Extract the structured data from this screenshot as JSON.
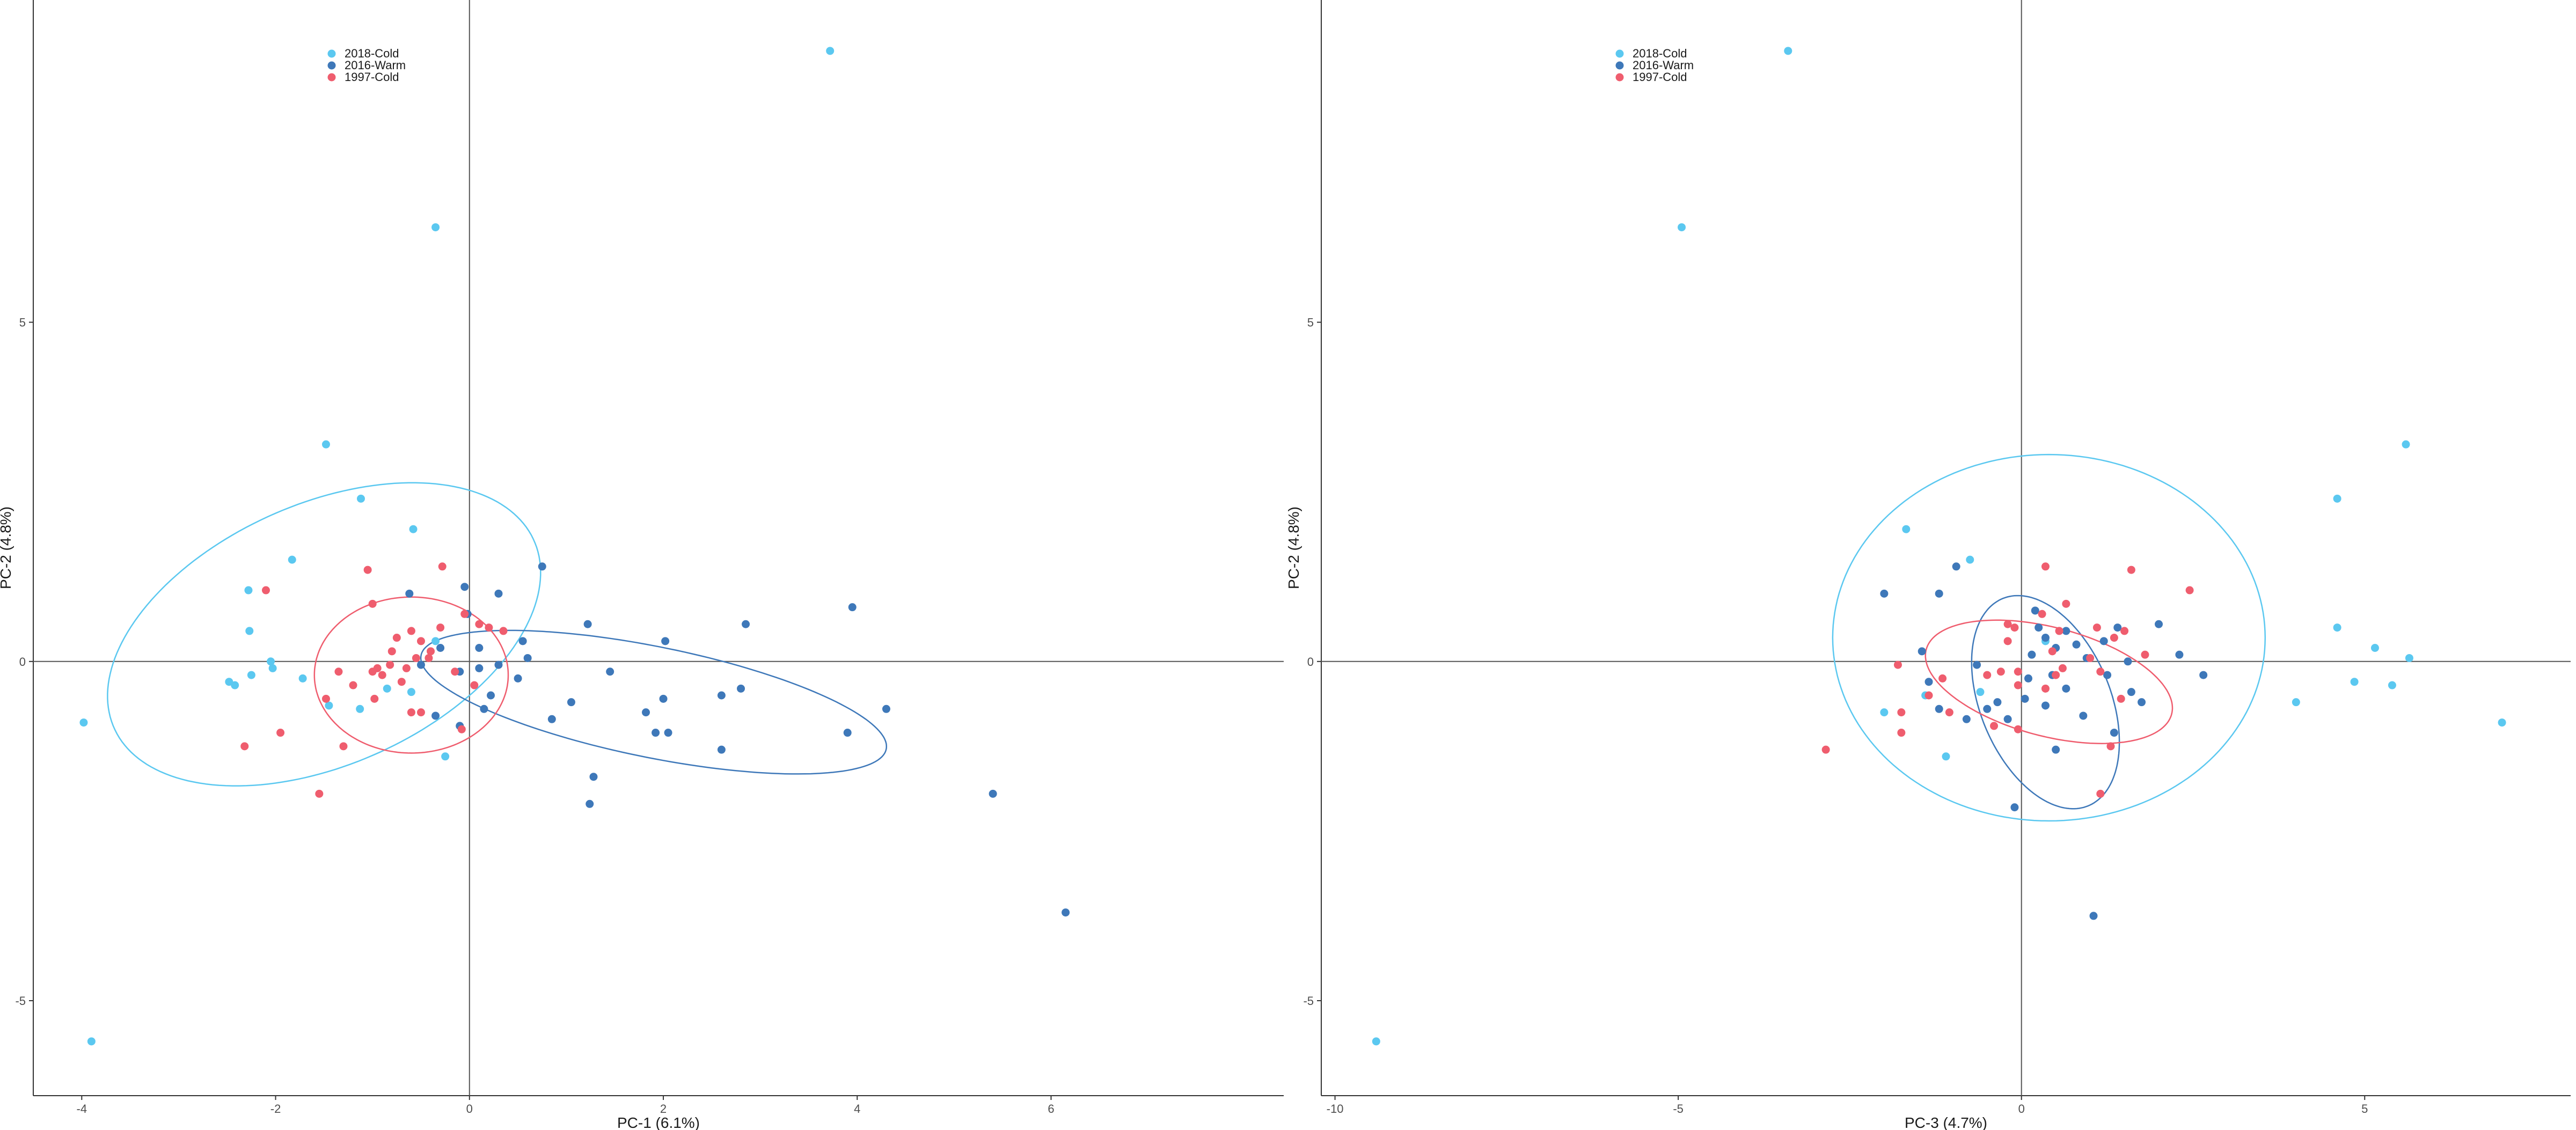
{
  "chart_data": [
    {
      "type": "scatter",
      "xlabel": "PC-1 (6.1%)",
      "ylabel": "PC-2 (4.8%)",
      "xlim": [
        -4.5,
        8.4
      ],
      "ylim": [
        -6.4,
        9.75
      ],
      "xticks": [
        -4,
        -2,
        0,
        2,
        4,
        6
      ],
      "yticks": [
        -5,
        0,
        5
      ],
      "grid": false,
      "legend": "top-left",
      "series": [
        {
          "name": "2018-Cold",
          "color": "#5bc8f0",
          "points": [
            [
              3.72,
              9.0
            ],
            [
              -0.35,
              6.4
            ],
            [
              -1.48,
              3.2
            ],
            [
              -1.12,
              2.4
            ],
            [
              -0.58,
              1.95
            ],
            [
              -1.83,
              1.5
            ],
            [
              -2.28,
              1.05
            ],
            [
              -2.27,
              0.45
            ],
            [
              -2.05,
              0.0
            ],
            [
              -2.03,
              -0.1
            ],
            [
              -2.25,
              -0.2
            ],
            [
              -1.72,
              -0.25
            ],
            [
              -2.48,
              -0.3
            ],
            [
              -2.42,
              -0.35
            ],
            [
              -0.85,
              -0.4
            ],
            [
              -1.45,
              -0.65
            ],
            [
              -1.13,
              -0.7
            ],
            [
              -0.25,
              -1.4
            ],
            [
              -3.98,
              -0.9
            ],
            [
              -3.9,
              -5.6
            ],
            [
              -0.35,
              0.3
            ],
            [
              -0.6,
              -0.45
            ]
          ]
        },
        {
          "name": "2016-Warm",
          "color": "#3e78b9",
          "points": [
            [
              0.75,
              1.4
            ],
            [
              -0.62,
              1.0
            ],
            [
              0.3,
              1.0
            ],
            [
              -0.05,
              1.1
            ],
            [
              -0.02,
              0.7
            ],
            [
              3.95,
              0.8
            ],
            [
              2.85,
              0.55
            ],
            [
              1.22,
              0.55
            ],
            [
              0.55,
              0.3
            ],
            [
              2.02,
              0.3
            ],
            [
              -0.3,
              0.2
            ],
            [
              0.1,
              0.2
            ],
            [
              0.6,
              0.05
            ],
            [
              0.3,
              -0.05
            ],
            [
              -0.5,
              -0.05
            ],
            [
              0.1,
              -0.1
            ],
            [
              -0.1,
              -0.15
            ],
            [
              1.45,
              -0.15
            ],
            [
              0.5,
              -0.25
            ],
            [
              2.8,
              -0.4
            ],
            [
              0.22,
              -0.5
            ],
            [
              2.0,
              -0.55
            ],
            [
              2.6,
              -0.5
            ],
            [
              1.05,
              -0.6
            ],
            [
              0.15,
              -0.7
            ],
            [
              4.3,
              -0.7
            ],
            [
              0.85,
              -0.85
            ],
            [
              1.82,
              -0.75
            ],
            [
              1.92,
              -1.05
            ],
            [
              2.05,
              -1.05
            ],
            [
              3.9,
              -1.05
            ],
            [
              -0.1,
              -0.95
            ],
            [
              -0.35,
              -0.8
            ],
            [
              2.6,
              -1.3
            ],
            [
              1.28,
              -1.7
            ],
            [
              1.24,
              -2.1
            ],
            [
              5.4,
              -1.95
            ],
            [
              6.15,
              -3.7
            ]
          ]
        },
        {
          "name": "1997-Cold",
          "color": "#ef5d6e",
          "points": [
            [
              -1.05,
              1.35
            ],
            [
              -0.28,
              1.4
            ],
            [
              -2.1,
              1.05
            ],
            [
              -1.0,
              0.85
            ],
            [
              -0.05,
              0.7
            ],
            [
              0.1,
              0.55
            ],
            [
              -0.3,
              0.5
            ],
            [
              -0.6,
              0.45
            ],
            [
              0.2,
              0.5
            ],
            [
              0.35,
              0.45
            ],
            [
              -0.75,
              0.35
            ],
            [
              -0.5,
              0.3
            ],
            [
              -0.8,
              0.15
            ],
            [
              -0.4,
              0.15
            ],
            [
              -0.55,
              0.05
            ],
            [
              -0.42,
              0.05
            ],
            [
              -0.82,
              -0.05
            ],
            [
              -0.95,
              -0.1
            ],
            [
              -0.65,
              -0.1
            ],
            [
              -1.0,
              -0.15
            ],
            [
              -1.35,
              -0.15
            ],
            [
              -0.9,
              -0.2
            ],
            [
              -0.15,
              -0.15
            ],
            [
              -0.7,
              -0.3
            ],
            [
              -1.2,
              -0.35
            ],
            [
              -0.98,
              -0.55
            ],
            [
              -0.6,
              -0.75
            ],
            [
              -0.5,
              -0.75
            ],
            [
              -0.08,
              -1.0
            ],
            [
              -1.95,
              -1.05
            ],
            [
              -2.32,
              -1.25
            ],
            [
              -1.3,
              -1.25
            ],
            [
              -1.55,
              -1.95
            ],
            [
              0.05,
              -0.35
            ],
            [
              -1.48,
              -0.55
            ]
          ]
        }
      ],
      "ellipses": [
        {
          "series": "2018-Cold",
          "cx": -1.5,
          "cy": 0.4,
          "rx": 2.65,
          "ry": 1.72,
          "angle": 45
        },
        {
          "series": "2016-Warm",
          "cx": 1.9,
          "cy": -0.6,
          "rx": 2.5,
          "ry": 0.8,
          "angle": -17
        },
        {
          "series": "1997-Cold",
          "cx": -0.6,
          "cy": -0.2,
          "rx": 1.0,
          "ry": 1.15,
          "angle": 0
        }
      ]
    },
    {
      "type": "scatter",
      "xlabel": "PC-3 (4.7%)",
      "ylabel": "PC-2 (4.8%)",
      "xlim": [
        -10.2,
        8.0
      ],
      "ylim": [
        -6.4,
        9.75
      ],
      "xticks": [
        -10,
        -5,
        0,
        5
      ],
      "yticks": [
        -5,
        0,
        5
      ],
      "grid": false,
      "legend": "top-left",
      "series": [
        {
          "name": "2018-Cold",
          "color": "#5bc8f0",
          "points": [
            [
              -3.4,
              9.0
            ],
            [
              -4.95,
              6.4
            ],
            [
              5.6,
              3.2
            ],
            [
              4.6,
              2.4
            ],
            [
              -1.68,
              1.95
            ],
            [
              -0.75,
              1.5
            ],
            [
              4.6,
              0.5
            ],
            [
              5.15,
              0.2
            ],
            [
              5.65,
              0.05
            ],
            [
              4.85,
              -0.3
            ],
            [
              5.4,
              -0.35
            ],
            [
              -1.4,
              -0.5
            ],
            [
              4.0,
              -0.6
            ],
            [
              -2.0,
              -0.75
            ],
            [
              7.0,
              -0.9
            ],
            [
              -1.1,
              -1.4
            ],
            [
              -9.4,
              -5.6
            ],
            [
              0.35,
              0.3
            ],
            [
              -0.6,
              -0.45
            ]
          ]
        },
        {
          "name": "2016-Warm",
          "color": "#3e78b9",
          "points": [
            [
              -0.95,
              1.4
            ],
            [
              -1.2,
              1.0
            ],
            [
              -2.0,
              1.0
            ],
            [
              0.2,
              0.75
            ],
            [
              2.0,
              0.55
            ],
            [
              0.35,
              0.35
            ],
            [
              1.2,
              0.3
            ],
            [
              0.5,
              0.2
            ],
            [
              2.3,
              0.1
            ],
            [
              -1.45,
              0.15
            ],
            [
              0.95,
              0.05
            ],
            [
              1.55,
              0.0
            ],
            [
              2.65,
              -0.2
            ],
            [
              -0.65,
              -0.05
            ],
            [
              -1.35,
              -0.3
            ],
            [
              0.65,
              -0.4
            ],
            [
              1.6,
              -0.45
            ],
            [
              -0.5,
              -0.7
            ],
            [
              -1.2,
              -0.7
            ],
            [
              0.35,
              -0.65
            ],
            [
              0.9,
              -0.8
            ],
            [
              -0.2,
              -0.85
            ],
            [
              1.35,
              -1.05
            ],
            [
              0.5,
              -1.3
            ],
            [
              -0.1,
              -2.15
            ],
            [
              1.05,
              -3.75
            ],
            [
              0.45,
              -0.2
            ],
            [
              0.05,
              -0.55
            ],
            [
              -0.35,
              -0.6
            ],
            [
              1.75,
              -0.6
            ],
            [
              0.15,
              0.1
            ],
            [
              1.25,
              -0.2
            ],
            [
              0.8,
              0.25
            ],
            [
              -0.8,
              -0.85
            ],
            [
              0.1,
              -0.25
            ],
            [
              0.65,
              0.45
            ],
            [
              1.4,
              0.5
            ],
            [
              0.25,
              0.5
            ]
          ]
        },
        {
          "name": "1997-Cold",
          "color": "#ef5d6e",
          "points": [
            [
              0.35,
              1.4
            ],
            [
              1.6,
              1.35
            ],
            [
              2.45,
              1.05
            ],
            [
              0.65,
              0.85
            ],
            [
              0.3,
              0.7
            ],
            [
              -0.2,
              0.55
            ],
            [
              -0.1,
              0.5
            ],
            [
              1.1,
              0.5
            ],
            [
              1.5,
              0.45
            ],
            [
              0.55,
              0.45
            ],
            [
              1.35,
              0.35
            ],
            [
              -0.2,
              0.3
            ],
            [
              0.45,
              0.15
            ],
            [
              1.8,
              0.1
            ],
            [
              1.0,
              0.05
            ],
            [
              -1.8,
              -0.05
            ],
            [
              0.6,
              -0.1
            ],
            [
              -0.3,
              -0.15
            ],
            [
              -0.05,
              -0.15
            ],
            [
              1.15,
              -0.15
            ],
            [
              -1.15,
              -0.25
            ],
            [
              -0.05,
              -0.35
            ],
            [
              0.35,
              -0.4
            ],
            [
              -1.35,
              -0.5
            ],
            [
              -1.05,
              -0.75
            ],
            [
              -1.75,
              -0.75
            ],
            [
              -0.05,
              -1.0
            ],
            [
              -1.75,
              -1.05
            ],
            [
              1.3,
              -1.25
            ],
            [
              -2.85,
              -1.3
            ],
            [
              1.15,
              -1.95
            ],
            [
              -0.5,
              -0.2
            ],
            [
              0.5,
              -0.2
            ],
            [
              1.45,
              -0.55
            ],
            [
              -0.4,
              -0.95
            ]
          ]
        }
      ],
      "ellipses": [
        {
          "series": "2018-Cold",
          "cx": 0.4,
          "cy": 0.35,
          "rx": 3.15,
          "ry": 2.7,
          "angle": 0
        },
        {
          "series": "2016-Warm",
          "cx": 0.35,
          "cy": -0.6,
          "rx": 1.65,
          "ry": 0.95,
          "angle": -68
        },
        {
          "series": "1997-Cold",
          "cx": 0.4,
          "cy": -0.3,
          "rx": 1.85,
          "ry": 0.8,
          "angle": -15
        }
      ]
    }
  ]
}
